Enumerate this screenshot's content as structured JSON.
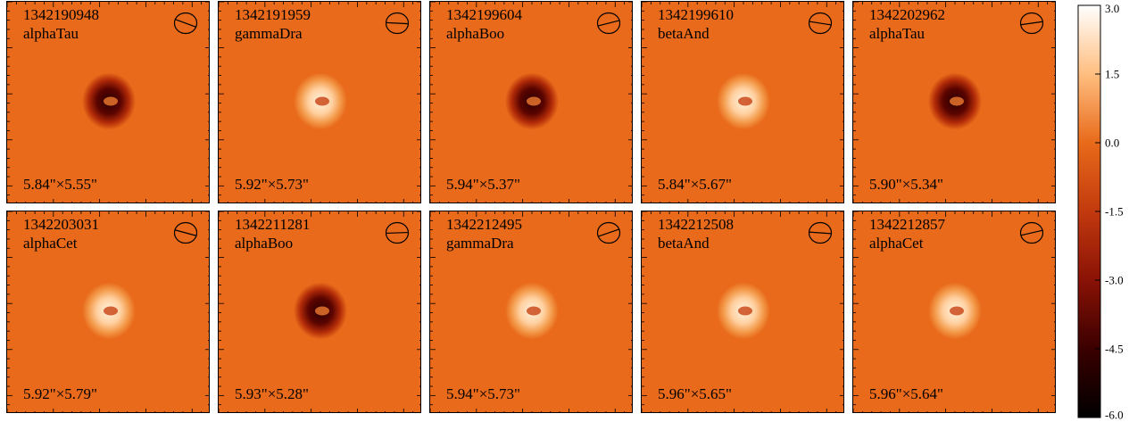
{
  "panels": [
    {
      "obsid": "1342190948",
      "target": "alphaTau",
      "size": "5.84\"×5.55\"",
      "residual": "negative"
    },
    {
      "obsid": "1342191959",
      "target": "gammaDra",
      "size": "5.92\"×5.73\"",
      "residual": "positive"
    },
    {
      "obsid": "1342199604",
      "target": "alphaBoo",
      "size": "5.94\"×5.37\"",
      "residual": "negative"
    },
    {
      "obsid": "1342199610",
      "target": "betaAnd",
      "size": "5.84\"×5.67\"",
      "residual": "positive"
    },
    {
      "obsid": "1342202962",
      "target": "alphaTau",
      "size": "5.90\"×5.34\"",
      "residual": "negative"
    },
    {
      "obsid": "1342203031",
      "target": "alphaCet",
      "size": "5.92\"×5.79\"",
      "residual": "positive"
    },
    {
      "obsid": "1342211281",
      "target": "alphaBoo",
      "size": "5.93\"×5.28\"",
      "residual": "negative"
    },
    {
      "obsid": "1342212495",
      "target": "gammaDra",
      "size": "5.94\"×5.73\"",
      "residual": "positive"
    },
    {
      "obsid": "1342212508",
      "target": "betaAnd",
      "size": "5.96\"×5.65\"",
      "residual": "positive"
    },
    {
      "obsid": "1342212857",
      "target": "alphaCet",
      "size": "5.96\"×5.64\"",
      "residual": "positive"
    }
  ],
  "colorbar": {
    "ticks": [
      "3.0",
      "1.5",
      "0.0",
      "-1.5",
      "-3.0",
      "-4.5",
      "-6.0"
    ],
    "max": 3.0,
    "min": -6.0,
    "colors": {
      "background": "#e86a1a",
      "high": "#ffffff",
      "low": "#000000",
      "mid_dark": "#8a1206"
    }
  }
}
